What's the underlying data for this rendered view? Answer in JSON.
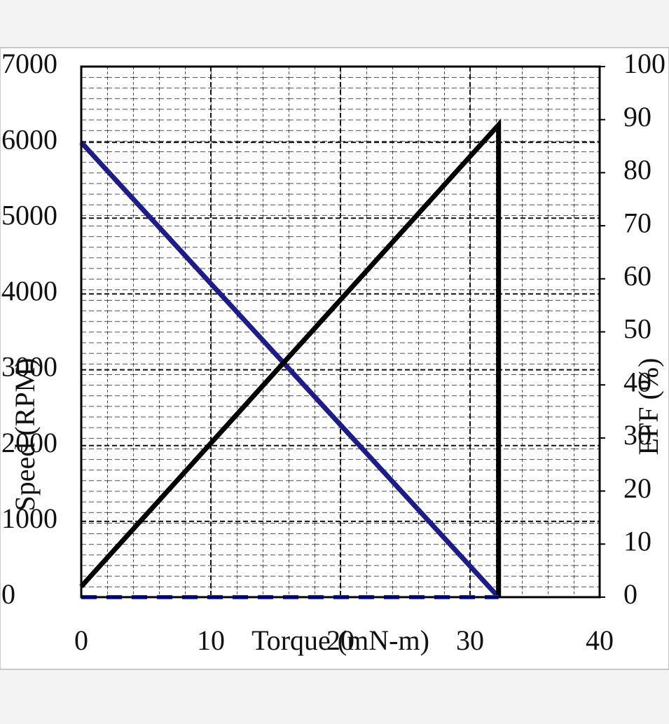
{
  "chart_data": {
    "type": "line",
    "x_label": "Torque (mN-m)",
    "y_label": "Speed (RPM)",
    "y2_label": "EFF (%)",
    "xlim": [
      0,
      40
    ],
    "xticks": [
      0,
      10,
      20,
      30,
      40
    ],
    "ylim": [
      0,
      7000
    ],
    "yticks": [
      0,
      1000,
      2000,
      3000,
      4000,
      5000,
      6000,
      7000
    ],
    "y2lim": [
      0,
      100
    ],
    "y2ticks": [
      0,
      10,
      20,
      30,
      40,
      50,
      60,
      70,
      80,
      90,
      100
    ],
    "grid": true,
    "series": [
      {
        "color": "#1c1c8a",
        "x": [
          0,
          32.2
        ],
        "values": [
          6000,
          0
        ]
      },
      {
        "color": "#000000",
        "axis": "y2",
        "x": [
          0,
          32.2,
          32.2
        ],
        "values": [
          2,
          89,
          0
        ]
      },
      {
        "color": "#1a2cff",
        "dashed": true,
        "x": [
          0,
          32.2
        ],
        "values": [
          0,
          0
        ]
      }
    ]
  }
}
